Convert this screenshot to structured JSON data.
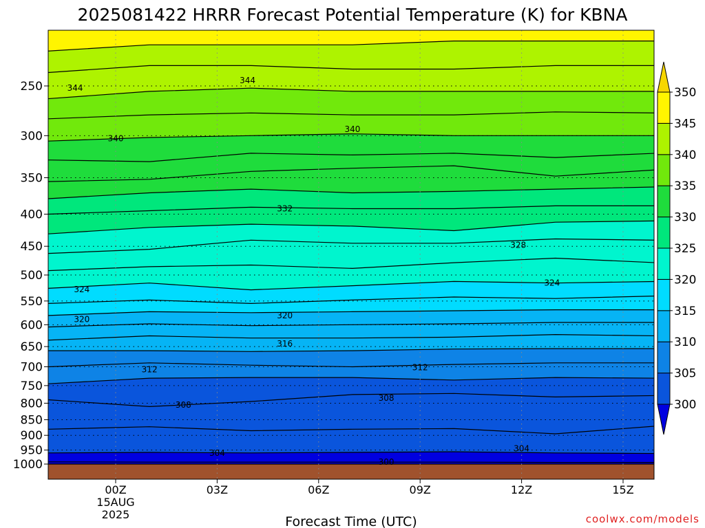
{
  "chart_data": {
    "type": "contour",
    "title": "2025081422 HRRR Forecast Potential Temperature (K) for KBNA",
    "xlabel": "Forecast Time (UTC)",
    "ylabel": "",
    "y_scale": "log-pressure",
    "ylim": [
      1000,
      200
    ],
    "y_ticks": [
      250,
      300,
      350,
      400,
      450,
      500,
      550,
      600,
      650,
      700,
      750,
      800,
      850,
      900,
      950,
      1000
    ],
    "x_ticks": [
      {
        "hour": 0,
        "label": "00Z",
        "sublabels": [
          "15AUG",
          "2025"
        ]
      },
      {
        "hour": 3,
        "label": "03Z"
      },
      {
        "hour": 6,
        "label": "06Z"
      },
      {
        "hour": 9,
        "label": "09Z"
      },
      {
        "hour": 12,
        "label": "12Z"
      },
      {
        "hour": 15,
        "label": "15Z"
      }
    ],
    "xlim_hours": [
      -2,
      16
    ],
    "grid": true,
    "colorbar": {
      "levels": [
        300,
        305,
        310,
        315,
        320,
        325,
        330,
        335,
        340,
        345,
        350
      ],
      "labels": [
        "300",
        "305",
        "310",
        "315",
        "320",
        "325",
        "330",
        "335",
        "340",
        "345",
        "350"
      ],
      "colors": [
        "#0000e0",
        "#0a55dc",
        "#0e83e6",
        "#06b4f5",
        "#00dcff",
        "#00f5ce",
        "#00e77c",
        "#1fdc3c",
        "#71e90c",
        "#aef300",
        "#fff500"
      ],
      "extend": "both",
      "placement": "right"
    },
    "series": [
      {
        "theta": 300,
        "p": [
          1000,
          1000,
          1000,
          1000,
          1000,
          1000,
          1000
        ]
      },
      {
        "theta": 302,
        "p": [
          992,
          993,
          993,
          993,
          993,
          994,
          994
        ]
      },
      {
        "theta": 304,
        "p": [
          960,
          958,
          960,
          958,
          956,
          960,
          962
        ]
      },
      {
        "theta": 306,
        "p": [
          880,
          872,
          885,
          880,
          878,
          895,
          870
        ]
      },
      {
        "theta": 308,
        "p": [
          790,
          810,
          795,
          775,
          772,
          782,
          778
        ]
      },
      {
        "theta": 310,
        "p": [
          745,
          730,
          728,
          728,
          735,
          728,
          730
        ]
      },
      {
        "theta": 312,
        "p": [
          700,
          690,
          696,
          700,
          694,
          690,
          690
        ]
      },
      {
        "theta": 314,
        "p": [
          660,
          660,
          662,
          660,
          656,
          655,
          655
        ]
      },
      {
        "theta": 316,
        "p": [
          635,
          625,
          630,
          630,
          628,
          622,
          625
        ]
      },
      {
        "theta": 318,
        "p": [
          605,
          598,
          602,
          600,
          598,
          595,
          595
        ]
      },
      {
        "theta": 320,
        "p": [
          580,
          572,
          574,
          572,
          570,
          568,
          568
        ]
      },
      {
        "theta": 322,
        "p": [
          555,
          548,
          555,
          548,
          542,
          545,
          540
        ]
      },
      {
        "theta": 324,
        "p": [
          525,
          515,
          528,
          520,
          512,
          515,
          512
        ]
      },
      {
        "theta": 326,
        "p": [
          492,
          485,
          482,
          488,
          478,
          470,
          478
        ]
      },
      {
        "theta": 328,
        "p": [
          462,
          455,
          440,
          445,
          445,
          438,
          440
        ]
      },
      {
        "theta": 330,
        "p": [
          430,
          420,
          415,
          418,
          425,
          412,
          410
        ]
      },
      {
        "theta": 332,
        "p": [
          400,
          395,
          390,
          392,
          392,
          388,
          388
        ]
      },
      {
        "theta": 334,
        "p": [
          378,
          370,
          365,
          370,
          368,
          365,
          362
        ]
      },
      {
        "theta": 336,
        "p": [
          355,
          352,
          342,
          338,
          335,
          348,
          340
        ]
      },
      {
        "theta": 338,
        "p": [
          328,
          330,
          320,
          322,
          320,
          325,
          320
        ]
      },
      {
        "theta": 340,
        "p": [
          306,
          302,
          300,
          298,
          300,
          300,
          300
        ]
      },
      {
        "theta": 342,
        "p": [
          282,
          278,
          276,
          278,
          278,
          275,
          276
        ]
      },
      {
        "theta": 344,
        "p": [
          262,
          255,
          252,
          255,
          255,
          255,
          255
        ]
      },
      {
        "theta": 346,
        "p": [
          238,
          232,
          232,
          235,
          235,
          232,
          232
        ]
      },
      {
        "theta": 348,
        "p": [
          220,
          215,
          215,
          215,
          212,
          212,
          212
        ]
      }
    ],
    "series_hours": [
      -2,
      1,
      4,
      7,
      10,
      13,
      16
    ],
    "contour_labels": [
      {
        "text": "344",
        "hour": -1.2,
        "p": 252
      },
      {
        "text": "344",
        "hour": 3.9,
        "p": 245
      },
      {
        "text": "340",
        "hour": 0,
        "p": 303
      },
      {
        "text": "340",
        "hour": 7.0,
        "p": 293
      },
      {
        "text": "332",
        "hour": 5.0,
        "p": 392
      },
      {
        "text": "328",
        "hour": 11.9,
        "p": 448
      },
      {
        "text": "324",
        "hour": -1.0,
        "p": 527
      },
      {
        "text": "324",
        "hour": 12.9,
        "p": 515
      },
      {
        "text": "320",
        "hour": -1.0,
        "p": 588
      },
      {
        "text": "320",
        "hour": 5.0,
        "p": 580
      },
      {
        "text": "316",
        "hour": 5.0,
        "p": 643
      },
      {
        "text": "312",
        "hour": 1.0,
        "p": 707
      },
      {
        "text": "312",
        "hour": 9.0,
        "p": 702
      },
      {
        "text": "308",
        "hour": 2.0,
        "p": 805
      },
      {
        "text": "308",
        "hour": 8.0,
        "p": 785
      },
      {
        "text": "304",
        "hour": 3.0,
        "p": 960
      },
      {
        "text": "304",
        "hour": 12.0,
        "p": 945
      },
      {
        "text": "300",
        "hour": 8.0,
        "p": 992
      }
    ],
    "terrain_color": "#a0522d"
  },
  "credit": "coolwx.com/models"
}
